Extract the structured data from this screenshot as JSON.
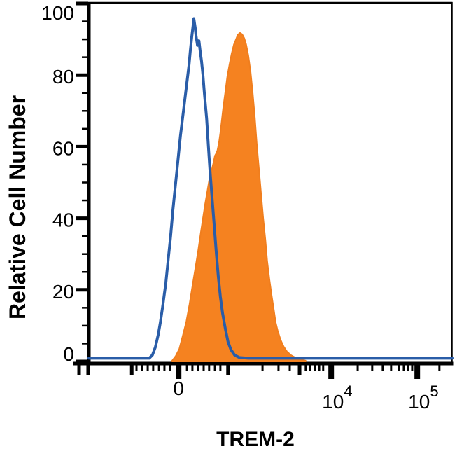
{
  "figure": {
    "background": "#ffffff"
  },
  "y_axis": {
    "title": "Relative Cell Number",
    "min": 0,
    "max": 100,
    "major_ticks": [
      0,
      20,
      40,
      60,
      80,
      100
    ],
    "minor_step": 5
  },
  "x_axis": {
    "title": "TREM-2",
    "scale": "biexponential",
    "major_ticks": [
      {
        "label": "0",
        "pos": 0.247
      },
      {
        "label": "10^4",
        "pos": 0.667
      },
      {
        "label": "10^5",
        "pos": 0.904
      }
    ],
    "medium_ticks": [
      -0.027,
      -0.002,
      0.118,
      0.383,
      0.58
    ],
    "minor_ticks": [
      0.131,
      0.146,
      0.162,
      0.177,
      0.193,
      0.208,
      0.224,
      0.27,
      0.285,
      0.301,
      0.316,
      0.331,
      0.347,
      0.362,
      0.478,
      0.522,
      0.553,
      0.597,
      0.609,
      0.622,
      0.634,
      0.645,
      0.74,
      0.78,
      0.809,
      0.832,
      0.854,
      0.867,
      0.879,
      0.89,
      0.965
    ]
  },
  "chart_data": {
    "type": "area",
    "subtype": "flow-cytometry-histogram-overlay",
    "x_units": "fraction along biexponential fluorescence axis",
    "y_units": "relative cell number (0-100)",
    "ylim": [
      0,
      100
    ],
    "grid": false,
    "legend": "none",
    "series": [
      {
        "name": "filled-orange-histogram",
        "style": "filled",
        "fill": "#F58220",
        "stroke": "#F07E1E",
        "stroke_width": 2,
        "peak": {
          "pos": 0.416,
          "value": 91.8
        },
        "points": [
          [
            0.229,
            0.2
          ],
          [
            0.239,
            1.5
          ],
          [
            0.249,
            3.5
          ],
          [
            0.258,
            7
          ],
          [
            0.268,
            11
          ],
          [
            0.277,
            16
          ],
          [
            0.285,
            21
          ],
          [
            0.293,
            26
          ],
          [
            0.301,
            31
          ],
          [
            0.308,
            36
          ],
          [
            0.314,
            40
          ],
          [
            0.32,
            44
          ],
          [
            0.326,
            47.5
          ],
          [
            0.331,
            50.5
          ],
          [
            0.337,
            53
          ],
          [
            0.343,
            55.5
          ],
          [
            0.347,
            57.5
          ],
          [
            0.351,
            58.2
          ],
          [
            0.354,
            59
          ],
          [
            0.358,
            61
          ],
          [
            0.362,
            64
          ],
          [
            0.366,
            67.5
          ],
          [
            0.37,
            71
          ],
          [
            0.376,
            75.5
          ],
          [
            0.381,
            79.5
          ],
          [
            0.387,
            83
          ],
          [
            0.393,
            86
          ],
          [
            0.399,
            88.5
          ],
          [
            0.405,
            90
          ],
          [
            0.41,
            91.3
          ],
          [
            0.416,
            91.8
          ],
          [
            0.422,
            91.4
          ],
          [
            0.428,
            90.3
          ],
          [
            0.433,
            88.6
          ],
          [
            0.439,
            85.5
          ],
          [
            0.445,
            81
          ],
          [
            0.451,
            75
          ],
          [
            0.457,
            68
          ],
          [
            0.462,
            61
          ],
          [
            0.468,
            54
          ],
          [
            0.474,
            47
          ],
          [
            0.48,
            40
          ],
          [
            0.486,
            34
          ],
          [
            0.491,
            28
          ],
          [
            0.497,
            23
          ],
          [
            0.503,
            18.5
          ],
          [
            0.509,
            14.5
          ],
          [
            0.514,
            11
          ],
          [
            0.52,
            8.5
          ],
          [
            0.528,
            6
          ],
          [
            0.536,
            4.2
          ],
          [
            0.545,
            2.8
          ],
          [
            0.557,
            1.7
          ],
          [
            0.57,
            1
          ],
          [
            0.584,
            0.5
          ],
          [
            0.597,
            0.2
          ]
        ]
      },
      {
        "name": "open-blue-histogram",
        "style": "outline",
        "fill": "none",
        "stroke": "#2A5DA8",
        "stroke_width": 4,
        "peak": {
          "pos": 0.289,
          "value": 95.8
        },
        "points": [
          [
            0.0,
            0.9
          ],
          [
            0.121,
            0.9
          ],
          [
            0.166,
            0.9
          ],
          [
            0.175,
            1.8
          ],
          [
            0.183,
            4
          ],
          [
            0.191,
            7.5
          ],
          [
            0.197,
            11
          ],
          [
            0.204,
            16
          ],
          [
            0.212,
            22
          ],
          [
            0.218,
            28
          ],
          [
            0.225,
            35
          ],
          [
            0.231,
            42
          ],
          [
            0.237,
            48
          ],
          [
            0.241,
            52
          ],
          [
            0.247,
            58
          ],
          [
            0.252,
            63
          ],
          [
            0.258,
            68
          ],
          [
            0.264,
            73
          ],
          [
            0.27,
            78
          ],
          [
            0.276,
            83
          ],
          [
            0.279,
            86.5
          ],
          [
            0.283,
            90.5
          ],
          [
            0.287,
            94
          ],
          [
            0.289,
            95.8
          ],
          [
            0.293,
            93
          ],
          [
            0.295,
            91
          ],
          [
            0.299,
            88.3
          ],
          [
            0.303,
            89.6
          ],
          [
            0.306,
            87
          ],
          [
            0.31,
            84
          ],
          [
            0.314,
            80
          ],
          [
            0.318,
            75
          ],
          [
            0.324,
            68
          ],
          [
            0.329,
            60
          ],
          [
            0.333,
            54
          ],
          [
            0.339,
            46
          ],
          [
            0.345,
            38
          ],
          [
            0.351,
            30
          ],
          [
            0.356,
            24
          ],
          [
            0.362,
            18
          ],
          [
            0.368,
            13.5
          ],
          [
            0.376,
            9
          ],
          [
            0.383,
            5.5
          ],
          [
            0.391,
            3.3
          ],
          [
            0.401,
            1.8
          ],
          [
            0.414,
            1.1
          ],
          [
            0.439,
            0.9
          ],
          [
            0.584,
            0.9
          ],
          [
            1.0,
            0.9
          ]
        ]
      }
    ]
  },
  "colors": {
    "axis": "#000000",
    "text": "#000000",
    "blue": "#2A5DA8",
    "orange": "#F58220"
  }
}
